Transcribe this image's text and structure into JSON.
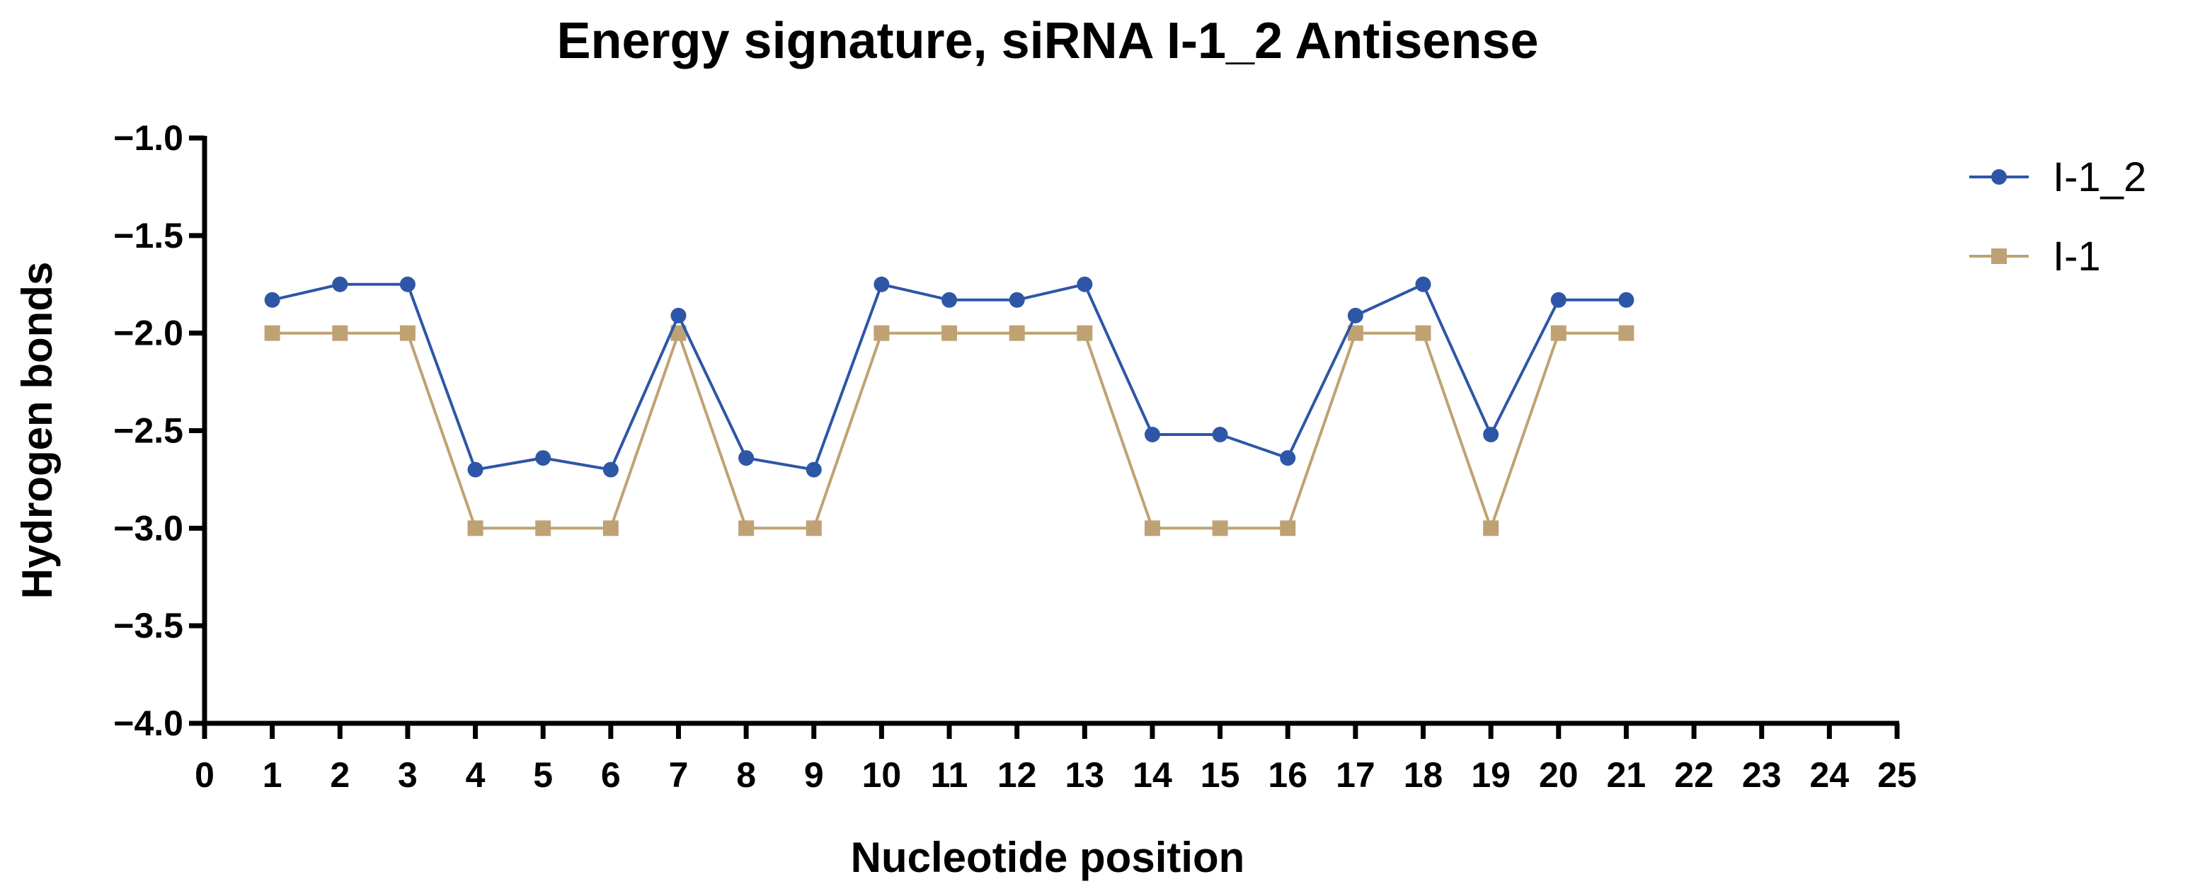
{
  "chart_data": {
    "type": "line",
    "title": "Energy signature, siRNA I-1_2 Antisense",
    "xlabel": "Nucleotide position",
    "ylabel": "Hydrogen bonds",
    "xlim": [
      0,
      25
    ],
    "ylim": [
      -4.0,
      -1.0
    ],
    "x_ticks": [
      0,
      1,
      2,
      3,
      4,
      5,
      6,
      7,
      8,
      9,
      10,
      11,
      12,
      13,
      14,
      15,
      16,
      17,
      18,
      19,
      20,
      21,
      22,
      23,
      24,
      25
    ],
    "y_ticks": [
      -1.0,
      -1.5,
      -2.0,
      -2.5,
      -3.0,
      -3.5,
      -4.0
    ],
    "y_tick_labels": [
      "−1.0",
      "−1.5",
      "−2.0",
      "−2.5",
      "−3.0",
      "−3.5",
      "−4.0"
    ],
    "grid": false,
    "legend_position": "top-right",
    "x": [
      1,
      2,
      3,
      4,
      5,
      6,
      7,
      8,
      9,
      10,
      11,
      12,
      13,
      14,
      15,
      16,
      17,
      18,
      19,
      20,
      21
    ],
    "series": [
      {
        "name": "I-1_2",
        "marker": "circle",
        "color": "#2E56A6",
        "values": [
          -1.83,
          -1.75,
          -1.75,
          -2.7,
          -2.64,
          -2.7,
          -1.91,
          -2.64,
          -2.7,
          -1.75,
          -1.83,
          -1.83,
          -1.75,
          -2.52,
          -2.52,
          -2.64,
          -1.91,
          -1.75,
          -2.52,
          -1.83,
          -1.83
        ]
      },
      {
        "name": "I-1",
        "marker": "square",
        "color": "#BFA274",
        "values": [
          -2.0,
          -2.0,
          -2.0,
          -3.0,
          -3.0,
          -3.0,
          -2.0,
          -3.0,
          -3.0,
          -2.0,
          -2.0,
          -2.0,
          -2.0,
          -3.0,
          -3.0,
          -3.0,
          -2.0,
          -2.0,
          -3.0,
          -2.0,
          -2.0
        ]
      }
    ]
  }
}
